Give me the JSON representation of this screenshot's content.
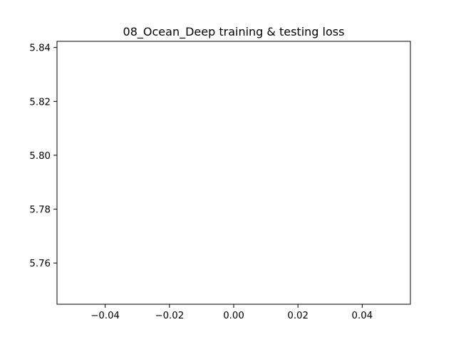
{
  "chart_data": {
    "type": "line",
    "title": "08_Ocean_Deep training & testing loss",
    "xlabel": "",
    "ylabel": "",
    "xlim": [
      -0.055,
      0.055
    ],
    "ylim": [
      5.7447,
      5.8423
    ],
    "xticks": [
      -0.04,
      -0.02,
      0.0,
      0.02,
      0.04
    ],
    "xtick_labels": [
      "−0.04",
      "−0.02",
      "0.00",
      "0.02",
      "0.04"
    ],
    "yticks": [
      5.76,
      5.78,
      5.8,
      5.82,
      5.84
    ],
    "ytick_labels": [
      "5.76",
      "5.78",
      "5.80",
      "5.82",
      "5.84"
    ],
    "series": [],
    "grid": false,
    "legend": "none",
    "colors": {
      "axes": "#000000",
      "background": "#ffffff"
    }
  }
}
